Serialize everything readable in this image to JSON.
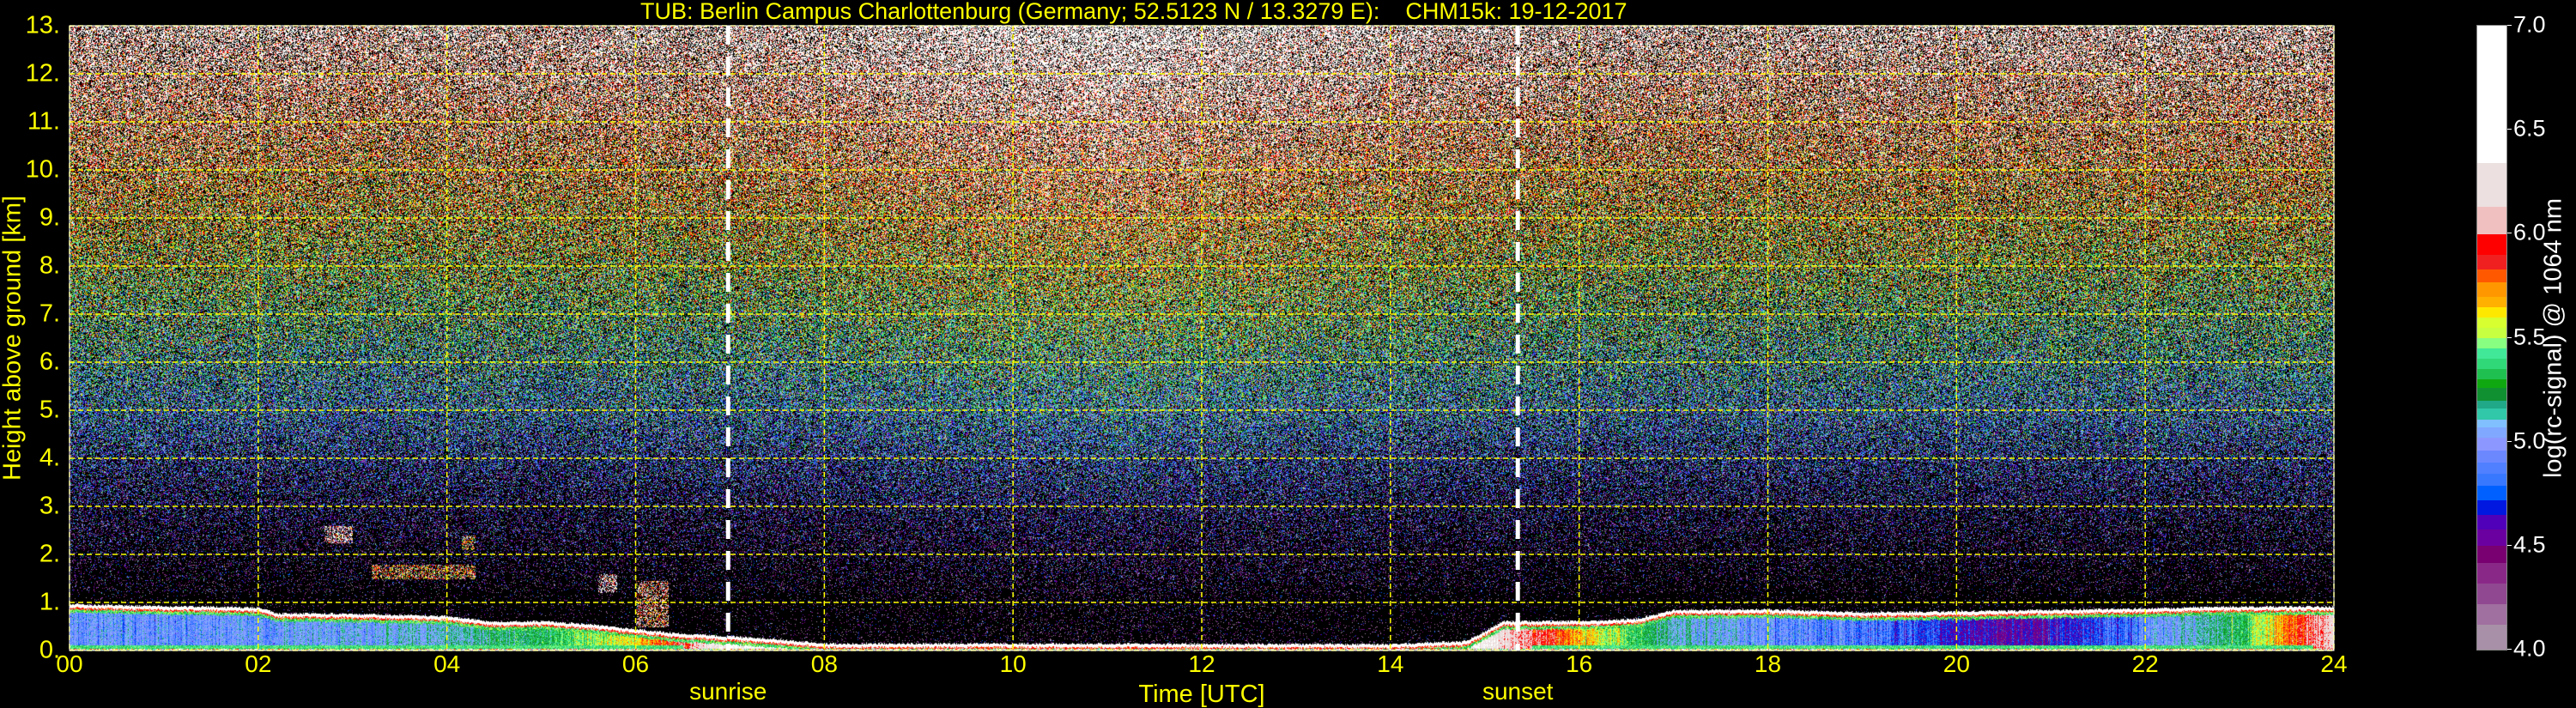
{
  "chart_data": {
    "type": "heatmap",
    "title": "TUB: Berlin Campus Charlottenburg (Germany; 52.5123 N / 13.3279 E):    CHM15k: 19-12-2017",
    "xlabel": "Time [UTC]",
    "ylabel": "Height above ground [km]",
    "xlim": [
      0,
      24
    ],
    "ylim": [
      0,
      13
    ],
    "x_ticks": [
      "00",
      "02",
      "04",
      "06",
      "08",
      "10",
      "12",
      "14",
      "16",
      "18",
      "20",
      "22",
      "24"
    ],
    "y_ticks": [
      "0.",
      "1.",
      "2.",
      "3.",
      "4.",
      "5.",
      "6.",
      "7.",
      "8.",
      "9.",
      "10.",
      "11.",
      "12.",
      "13."
    ],
    "grid": true,
    "grid_color": "#ffff00",
    "background": "#000000",
    "events": [
      {
        "label": "sunrise",
        "time": 6.98
      },
      {
        "label": "sunset",
        "time": 15.35
      }
    ],
    "colorbar": {
      "label": "log(rc-signal) @ 1064 nm",
      "range": [
        4.0,
        7.0
      ],
      "ticks": [
        "4.0",
        "4.5",
        "5.0",
        "5.5",
        "6.0",
        "6.5",
        "7.0"
      ],
      "bounds": [
        4.0,
        4.12,
        4.22,
        4.32,
        4.42,
        4.5,
        4.58,
        4.65,
        4.72,
        4.79,
        4.85,
        4.9,
        4.96,
        5.02,
        5.07,
        5.11,
        5.16,
        5.2,
        5.26,
        5.3,
        5.35,
        5.4,
        5.45,
        5.5,
        5.55,
        5.6,
        5.65,
        5.7,
        5.77,
        5.83,
        5.9,
        6.0,
        6.13,
        6.34,
        7.0
      ],
      "colors": [
        "#a890a8",
        "#a070a0",
        "#904890",
        "#8a2888",
        "#780070",
        "#6a00a0",
        "#5000b8",
        "#0018e0",
        "#0060ff",
        "#3878ff",
        "#5080ff",
        "#6c88ff",
        "#8c98ff",
        "#80a8ff",
        "#80c0ff",
        "#30c8a8",
        "#20a888",
        "#109030",
        "#10a810",
        "#20c050",
        "#30d878",
        "#40e898",
        "#88ff80",
        "#c8ff40",
        "#d8ff30",
        "#ffe800",
        "#ffb000",
        "#ff9800",
        "#ff5800",
        "#f02020",
        "#ff0000",
        "#f0c0c0",
        "#ece0e0",
        "#ffffff"
      ]
    },
    "boundary_layer_top_km": [
      [
        0,
        0.97
      ],
      [
        1,
        0.93
      ],
      [
        2,
        0.9
      ],
      [
        2.2,
        0.78
      ],
      [
        3,
        0.77
      ],
      [
        4,
        0.72
      ],
      [
        4.5,
        0.6
      ],
      [
        5,
        0.62
      ],
      [
        5.5,
        0.55
      ],
      [
        6,
        0.45
      ],
      [
        6.5,
        0.35
      ],
      [
        7,
        0.3
      ],
      [
        7.5,
        0.24
      ],
      [
        8,
        0.15
      ],
      [
        14,
        0.14
      ],
      [
        14.8,
        0.2
      ],
      [
        15.2,
        0.62
      ],
      [
        16,
        0.62
      ],
      [
        16.6,
        0.66
      ],
      [
        17,
        0.85
      ],
      [
        18,
        0.86
      ],
      [
        19,
        0.8
      ],
      [
        20,
        0.82
      ],
      [
        22,
        0.88
      ],
      [
        23,
        0.92
      ],
      [
        24,
        0.92
      ]
    ],
    "boundary_layer_interior_signal": [
      [
        0,
        4.95
      ],
      [
        2,
        4.95
      ],
      [
        3,
        5.05
      ],
      [
        4,
        5.1
      ],
      [
        5,
        5.3
      ],
      [
        6,
        5.6
      ],
      [
        7,
        6.4
      ],
      [
        14.8,
        6.4
      ],
      [
        15.5,
        6.0
      ],
      [
        17,
        5.1
      ],
      [
        18,
        4.95
      ],
      [
        19,
        4.85
      ],
      [
        20.5,
        4.55
      ],
      [
        21,
        4.6
      ],
      [
        22,
        4.9
      ],
      [
        23,
        5.3
      ],
      [
        24,
        6.2
      ]
    ],
    "cloud_patches": [
      {
        "t0": 2.7,
        "t1": 3.0,
        "h0": 2.25,
        "h1": 2.6,
        "signal": 6.2
      },
      {
        "t0": 3.2,
        "t1": 4.3,
        "h0": 1.5,
        "h1": 1.8,
        "signal": 5.8
      },
      {
        "t0": 4.15,
        "t1": 4.3,
        "h0": 2.1,
        "h1": 2.4,
        "signal": 5.8
      },
      {
        "t0": 5.6,
        "t1": 5.8,
        "h0": 1.2,
        "h1": 1.6,
        "signal": 6.3
      },
      {
        "t0": 6.0,
        "t1": 6.35,
        "h0": 0.5,
        "h1": 1.45,
        "signal": 6.0
      }
    ]
  }
}
